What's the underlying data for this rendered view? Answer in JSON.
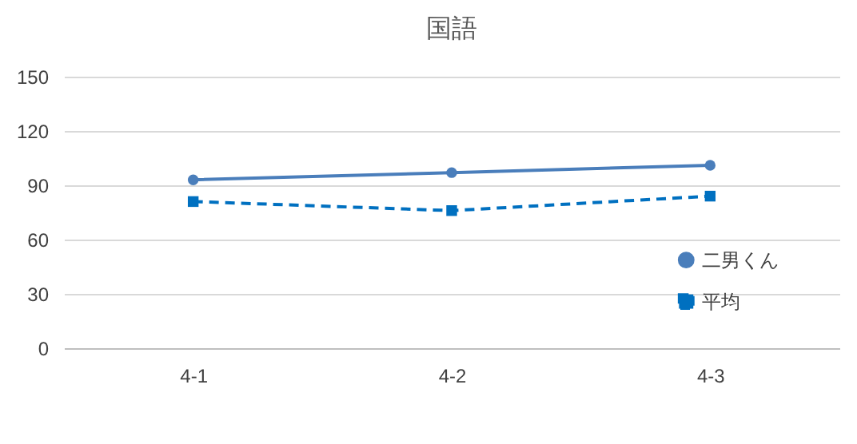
{
  "chart_data": {
    "type": "line",
    "title": "国語",
    "categories": [
      "4-1",
      "4-2",
      "4-3"
    ],
    "series": [
      {
        "name": "二男くん",
        "color": "#4a7ebb",
        "values": [
          93,
          97,
          101
        ],
        "marker": "circle",
        "line_style": "solid"
      },
      {
        "name": "平均",
        "color": "#0070c0",
        "values": [
          81,
          76,
          84
        ],
        "marker": "square",
        "line_style": "dashed"
      }
    ],
    "ylim": [
      0,
      150
    ],
    "yticks": [
      0,
      30,
      60,
      90,
      120,
      150
    ],
    "grid": "y",
    "legend": "right"
  }
}
